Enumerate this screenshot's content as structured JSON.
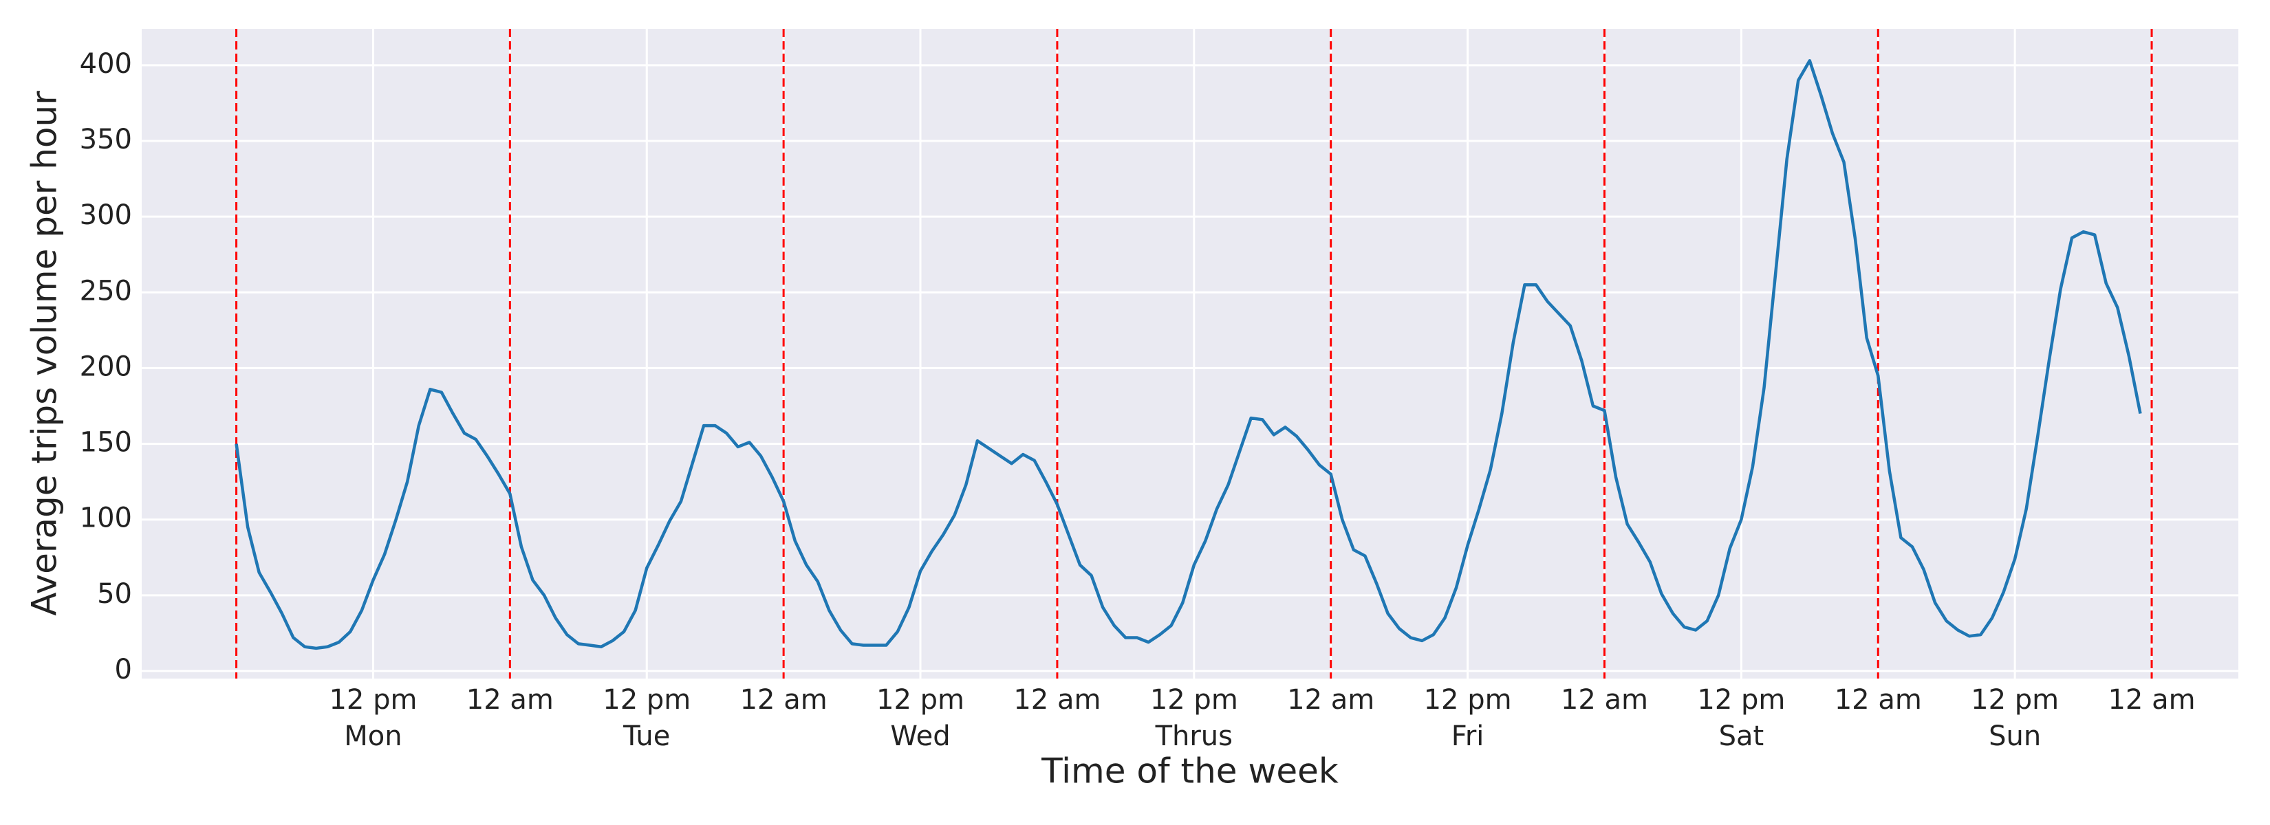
{
  "chart_data": {
    "type": "line",
    "xlabel": "Time of the week",
    "ylabel": "Average trips volume per hour",
    "x": [
      0,
      1,
      2,
      3,
      4,
      5,
      6,
      7,
      8,
      9,
      10,
      11,
      12,
      13,
      14,
      15,
      16,
      17,
      18,
      19,
      20,
      21,
      22,
      23,
      24,
      25,
      26,
      27,
      28,
      29,
      30,
      31,
      32,
      33,
      34,
      35,
      36,
      37,
      38,
      39,
      40,
      41,
      42,
      43,
      44,
      45,
      46,
      47,
      48,
      49,
      50,
      51,
      52,
      53,
      54,
      55,
      56,
      57,
      58,
      59,
      60,
      61,
      62,
      63,
      64,
      65,
      66,
      67,
      68,
      69,
      70,
      71,
      72,
      73,
      74,
      75,
      76,
      77,
      78,
      79,
      80,
      81,
      82,
      83,
      84,
      85,
      86,
      87,
      88,
      89,
      90,
      91,
      92,
      93,
      94,
      95,
      96,
      97,
      98,
      99,
      100,
      101,
      102,
      103,
      104,
      105,
      106,
      107,
      108,
      109,
      110,
      111,
      112,
      113,
      114,
      115,
      116,
      117,
      118,
      119,
      120,
      121,
      122,
      123,
      124,
      125,
      126,
      127,
      128,
      129,
      130,
      131,
      132,
      133,
      134,
      135,
      136,
      137,
      138,
      139,
      140,
      141,
      142,
      143,
      144,
      145,
      146,
      147,
      148,
      149,
      150,
      151,
      152,
      153,
      154,
      155,
      156,
      157,
      158,
      159,
      160,
      161,
      162,
      163,
      164,
      165,
      166,
      167
    ],
    "series": [
      {
        "color": "#1f77b4",
        "values": [
          150,
          95,
          65,
          52,
          38,
          22,
          16,
          15,
          16,
          19,
          26,
          40,
          60,
          77,
          100,
          125,
          162,
          186,
          184,
          170,
          157,
          153,
          142,
          130,
          117,
          82,
          60,
          50,
          35,
          24,
          18,
          17,
          16,
          20,
          26,
          40,
          68,
          83,
          99,
          112,
          137,
          162,
          162,
          157,
          148,
          151,
          142,
          128,
          112,
          86,
          70,
          59,
          40,
          27,
          18,
          17,
          17,
          17,
          26,
          42,
          66,
          79,
          90,
          103,
          123,
          152,
          147,
          142,
          137,
          143,
          139,
          125,
          110,
          90,
          70,
          63,
          42,
          30,
          22,
          22,
          19,
          24,
          30,
          45,
          70,
          86,
          107,
          123,
          145,
          167,
          166,
          156,
          161,
          155,
          146,
          136,
          130,
          100,
          80,
          76,
          58,
          38,
          28,
          22,
          20,
          24,
          35,
          55,
          83,
          107,
          133,
          170,
          217,
          255,
          255,
          244,
          236,
          228,
          205,
          175,
          172,
          128,
          97,
          85,
          72,
          51,
          38,
          29,
          27,
          33,
          50,
          81,
          100,
          135,
          187,
          262,
          338,
          390,
          403,
          380,
          355,
          336,
          285,
          220,
          195,
          132,
          88,
          82,
          67,
          45,
          33,
          27,
          23,
          24,
          35,
          52,
          74,
          107,
          155,
          205,
          252,
          286,
          290,
          288,
          256,
          240,
          208,
          170
        ]
      }
    ],
    "xlim": [
      -8.3,
      175.6
    ],
    "ylim": [
      -5,
      424
    ],
    "yticks": [
      0,
      50,
      100,
      150,
      200,
      250,
      300,
      350,
      400
    ],
    "xticks": [
      {
        "value": 12,
        "label": "12 pm"
      },
      {
        "value": 24,
        "label": "12 am"
      },
      {
        "value": 36,
        "label": "12 pm"
      },
      {
        "value": 48,
        "label": "12 am"
      },
      {
        "value": 60,
        "label": "12 pm"
      },
      {
        "value": 72,
        "label": "12 am"
      },
      {
        "value": 84,
        "label": "12 pm"
      },
      {
        "value": 96,
        "label": "12 am"
      },
      {
        "value": 108,
        "label": "12 pm"
      },
      {
        "value": 120,
        "label": "12 am"
      },
      {
        "value": 132,
        "label": "12 pm"
      },
      {
        "value": 144,
        "label": "12 am"
      },
      {
        "value": 156,
        "label": "12 pm"
      },
      {
        "value": 168,
        "label": "12 am"
      }
    ],
    "categories": [
      "Mon",
      "Tue",
      "Wed",
      "Thrus",
      "Fri",
      "Sat",
      "Sun"
    ],
    "vlines": [
      0,
      24,
      48,
      72,
      96,
      120,
      144,
      168
    ],
    "vline_color": "#ff0000",
    "grid": true
  }
}
